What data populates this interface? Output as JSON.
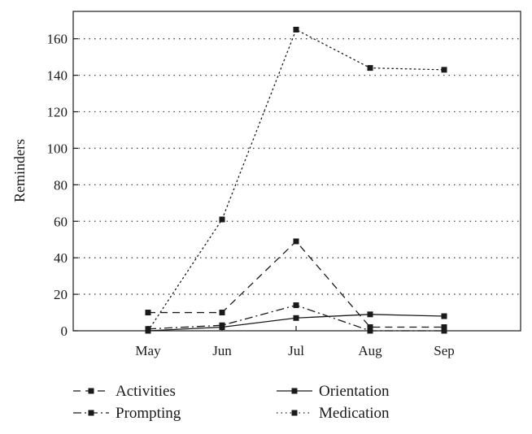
{
  "chart_data": {
    "type": "line",
    "title": "",
    "xlabel": "",
    "ylabel": "Reminders",
    "categories": [
      "May",
      "Jun",
      "Jul",
      "Aug",
      "Sep"
    ],
    "ylim": [
      0,
      175
    ],
    "yticks": [
      0,
      20,
      40,
      60,
      80,
      100,
      120,
      140,
      160
    ],
    "grid": "horizontal dotted",
    "legend_placement": "bottom",
    "series": [
      {
        "name": "Activities",
        "line_style": "dashed",
        "values": [
          10,
          10,
          49,
          2,
          2
        ]
      },
      {
        "name": "Orientation",
        "line_style": "solid",
        "values": [
          0,
          2,
          7,
          9,
          8
        ]
      },
      {
        "name": "Prompting",
        "line_style": "dash-dot",
        "values": [
          1,
          3,
          14,
          0,
          0
        ]
      },
      {
        "name": "Medication",
        "line_style": "dotted",
        "values": [
          0,
          61,
          165,
          144,
          143
        ]
      }
    ],
    "colors": {
      "lines": "#1a1a1a",
      "grid": "#444444",
      "axes": "#1a1a1a"
    }
  }
}
